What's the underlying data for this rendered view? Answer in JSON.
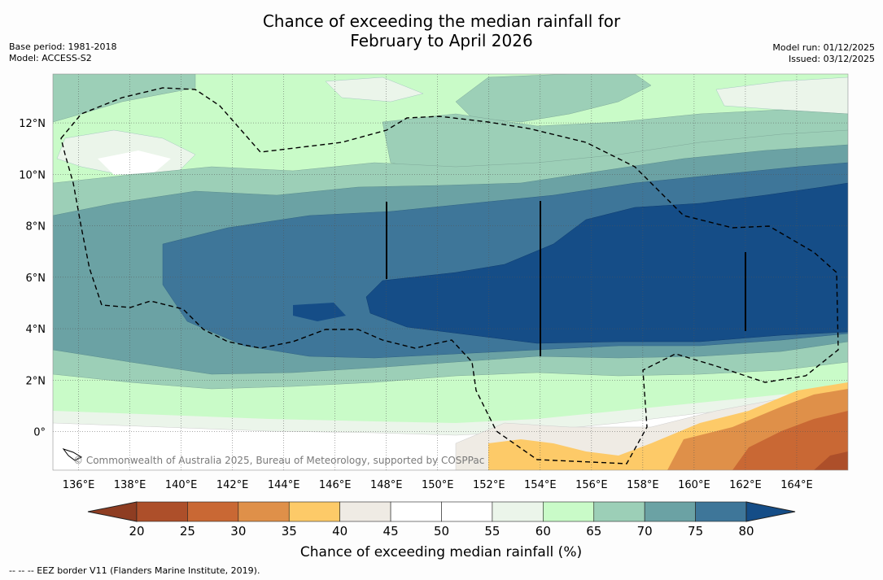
{
  "title": {
    "line1": "Chance of exceeding the median rainfall for",
    "line2": "February to April 2026"
  },
  "meta_left": {
    "base_period": "Base period: 1981-2018",
    "model": "Model: ACCESS-S2"
  },
  "meta_right": {
    "model_run": "Model run: 01/12/2025",
    "issued": "Issued: 03/12/2025"
  },
  "map": {
    "lon_ticks": [
      "136°E",
      "138°E",
      "140°E",
      "142°E",
      "144°E",
      "146°E",
      "148°E",
      "150°E",
      "152°E",
      "154°E",
      "156°E",
      "158°E",
      "160°E",
      "162°E",
      "164°E"
    ],
    "lon_values": [
      136,
      138,
      140,
      142,
      144,
      146,
      148,
      150,
      152,
      154,
      156,
      158,
      160,
      162,
      164
    ],
    "lat_ticks": [
      "12°N",
      "10°N",
      "8°N",
      "6°N",
      "4°N",
      "2°N",
      "0°"
    ],
    "lat_values": [
      12,
      10,
      8,
      6,
      4,
      2,
      0
    ],
    "lon_range": [
      135,
      166
    ],
    "lat_range": [
      -1.5,
      13.9
    ],
    "watermark": "© Commonwealth of Australia 2025, Bureau of Meteorology, supported by COSPPac",
    "icons": {
      "eez_border": "dashed-line",
      "coastline": "island-outline"
    }
  },
  "colorbar": {
    "ticks": [
      "20",
      "25",
      "30",
      "35",
      "40",
      "45",
      "50",
      "55",
      "60",
      "65",
      "70",
      "75",
      "80"
    ],
    "values": [
      20,
      25,
      30,
      35,
      40,
      45,
      50,
      55,
      60,
      65,
      70,
      75,
      80
    ],
    "colors": [
      "#ad4f2a",
      "#c96834",
      "#df9049",
      "#fdca68",
      "#efebe4",
      "#ffffff",
      "#ffffff",
      "#ebf5ea",
      "#c9fbc8",
      "#9ccfb7",
      "#6ba2a4",
      "#3e7699",
      "#154d87"
    ],
    "under_color": "#8e3d22",
    "over_color": "#154d87",
    "label": "Chance of exceeding median rainfall (%)"
  },
  "footnote": "--  --  -- EEZ border V11 (Flanders Marine Institute, 2019)."
}
